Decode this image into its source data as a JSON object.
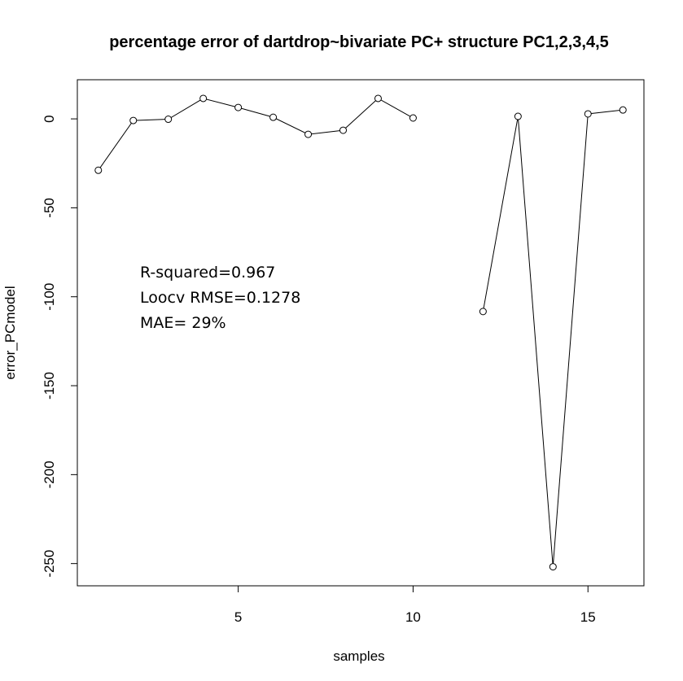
{
  "chart_data": {
    "type": "line",
    "title": "percentage error of dartdrop~bivariate PC+ structure PC1,2,3,4,5",
    "x_label": "samples",
    "y_label": "error_PCmodel",
    "x": [
      1,
      2,
      3,
      4,
      5,
      6,
      7,
      8,
      9,
      10,
      11,
      12,
      13,
      14,
      15,
      16
    ],
    "series": [
      {
        "color": "#000000",
        "values": [
          -28.9,
          -0.9,
          -0.2,
          11.5,
          6.4,
          0.9,
          -8.7,
          -6.4,
          11.5,
          0.5,
          null,
          -108.3,
          1.4,
          -251.8,
          2.8,
          5.0
        ]
      }
    ],
    "xlim": [
      0.4,
      16.6
    ],
    "xticks": [
      5,
      10,
      15
    ],
    "ylim": [
      -262.5,
      22
    ],
    "yticks": [
      0,
      -50,
      -100,
      -150,
      -200,
      -250
    ],
    "annotations": [
      "R-squared=0.967",
      "Loocv RMSE=0.1278",
      "MAE= 29%"
    ]
  }
}
